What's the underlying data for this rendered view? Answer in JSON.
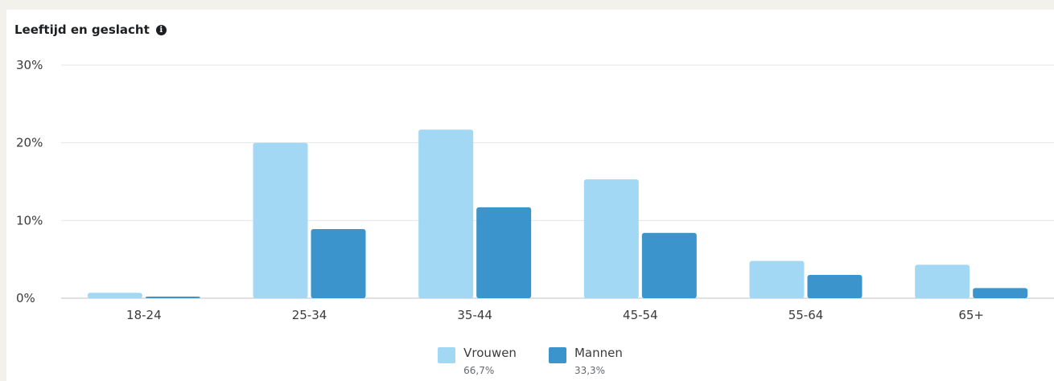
{
  "chart_data": {
    "type": "bar",
    "title": "Leeftijd en geslacht",
    "categories": [
      "18-24",
      "25-34",
      "35-44",
      "45-54",
      "55-64",
      "65+"
    ],
    "series": [
      {
        "name": "Vrouwen",
        "share": "66,7%",
        "color": "#a3d8f5",
        "values": [
          0.7,
          20.0,
          21.7,
          15.3,
          4.8,
          4.3
        ]
      },
      {
        "name": "Mannen",
        "share": "33,3%",
        "color": "#3b94cc",
        "values": [
          0.2,
          8.9,
          11.7,
          8.4,
          3.0,
          1.3
        ]
      }
    ],
    "yticks": [
      "0%",
      "10%",
      "20%",
      "30%"
    ],
    "ylim": [
      0,
      30
    ],
    "grid": true,
    "legend_position": "bottom-center",
    "xlabel": "",
    "ylabel": ""
  },
  "info_icon": "info-icon"
}
